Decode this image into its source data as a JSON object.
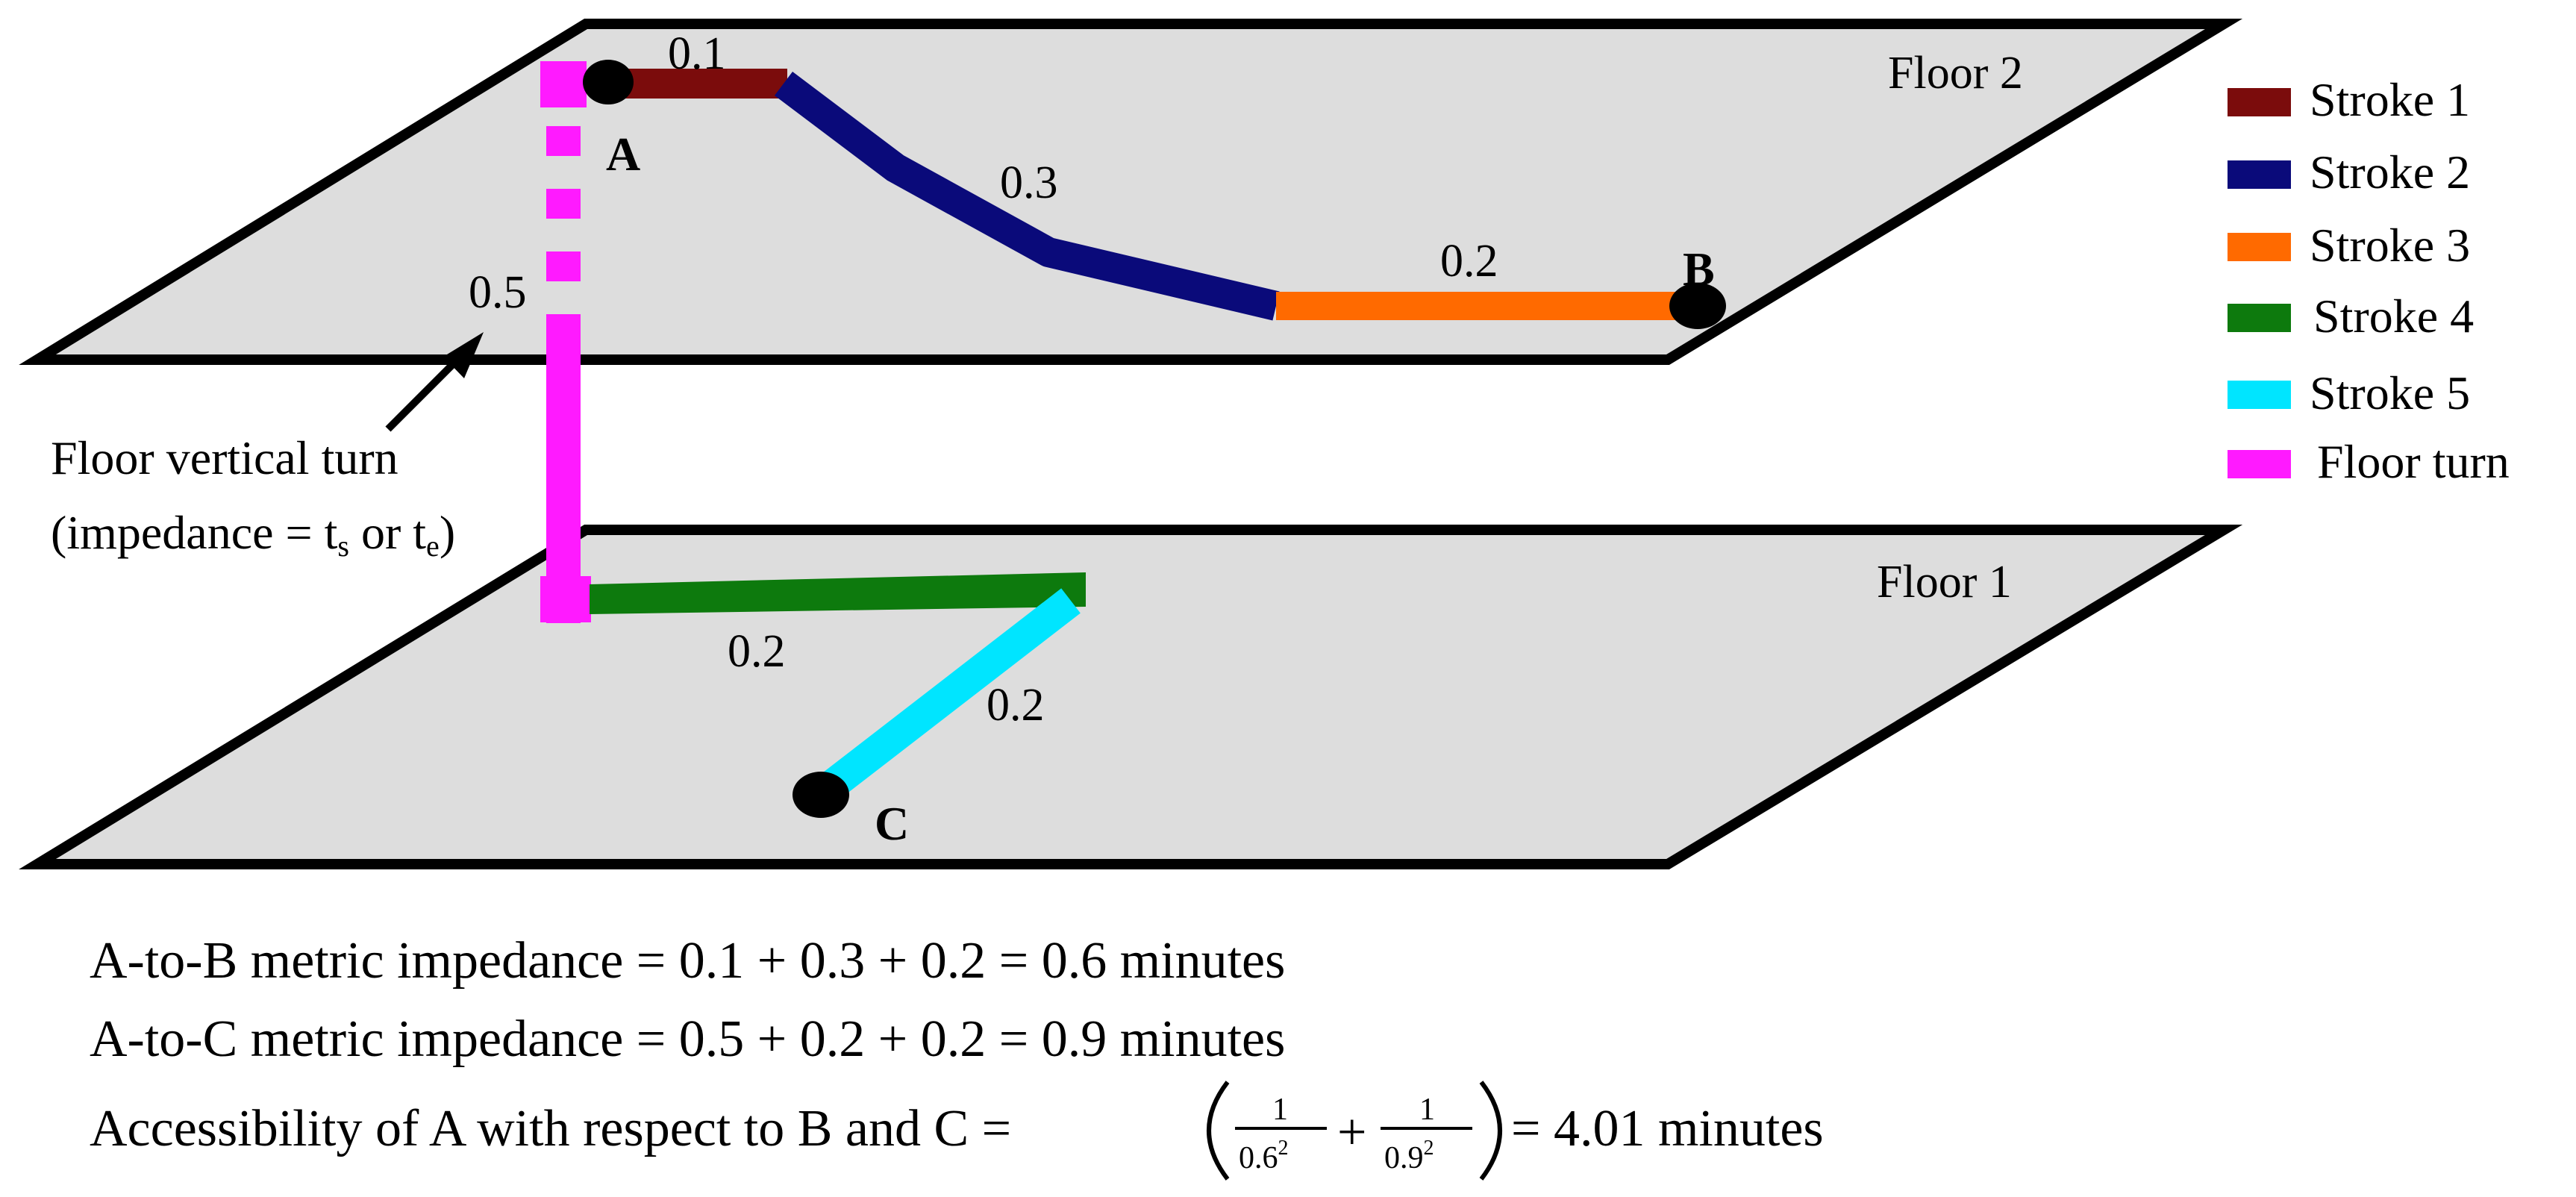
{
  "floors": [
    {
      "label": "Floor 2"
    },
    {
      "label": "Floor 1"
    }
  ],
  "colors": {
    "floor_fill": "#dddddd",
    "stroke_1": "#7b0c0c",
    "stroke_2": "#0a0a7a",
    "stroke_3": "#ff6a00",
    "stroke_4": "#0d7a0d",
    "stroke_5": "#00e5ff",
    "floor_turn": "#ff1aff"
  },
  "points": {
    "a": "A",
    "b": "B",
    "c": "C"
  },
  "segment_labels": {
    "stroke_1": "0.1",
    "stroke_2": "0.3",
    "stroke_3": "0.2",
    "floor_turn": "0.5",
    "stroke_4": "0.2",
    "stroke_5": "0.2"
  },
  "annotation": {
    "line1": "Floor vertical turn",
    "line2_prefix": "(impedance = t",
    "sub_s": "s",
    "or_text": " or t",
    "sub_e": "e",
    "close": ")"
  },
  "legend": [
    {
      "label": "Stroke 1"
    },
    {
      "label": "Stroke 2"
    },
    {
      "label": "Stroke 3"
    },
    {
      "label": "Stroke 4"
    },
    {
      "label": "Stroke 5"
    },
    {
      "label": "Floor turn"
    }
  ],
  "equations": {
    "a_to_b": "A-to-B metric impedance = 0.1 + 0.3 + 0.2 = 0.6 minutes",
    "a_to_c": "A-to-C metric impedance = 0.5 + 0.2 + 0.2 = 0.9 minutes",
    "accessibility_prefix": "Accessibility of A with respect to B and C = ",
    "frac1_num": "1",
    "frac1_den": "0.6",
    "frac1_exp": "2",
    "plus": "+",
    "frac2_num": "1",
    "frac2_den": "0.9",
    "frac2_exp": "2",
    "accessibility_result": "= 4.01 minutes"
  }
}
